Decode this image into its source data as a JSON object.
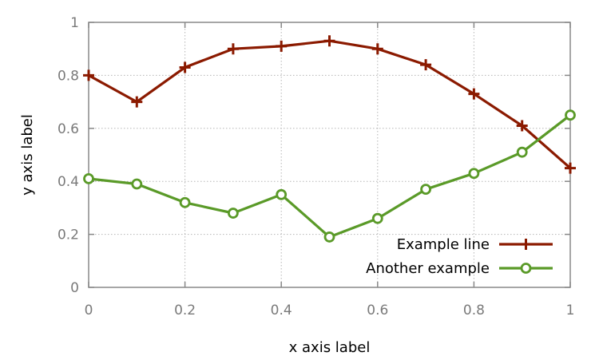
{
  "chart_data": {
    "type": "line",
    "xlabel": "x axis label",
    "ylabel": "y axis label",
    "xlim": [
      0,
      1
    ],
    "ylim": [
      0,
      1
    ],
    "x_ticks": [
      "0",
      "0.2",
      "0.4",
      "0.6",
      "0.8",
      "1"
    ],
    "y_ticks": [
      "0",
      "0.2",
      "0.4",
      "0.6",
      "0.8",
      "1"
    ],
    "grid": true,
    "legend_position": "bottom-right",
    "series": [
      {
        "name": "Example line",
        "color": "#8b1a00",
        "marker": "plus",
        "x": [
          0,
          0.1,
          0.2,
          0.3,
          0.4,
          0.5,
          0.6,
          0.7,
          0.8,
          0.9,
          1.0
        ],
        "y": [
          0.8,
          0.7,
          0.83,
          0.9,
          0.91,
          0.93,
          0.9,
          0.84,
          0.73,
          0.61,
          0.45
        ]
      },
      {
        "name": "Another example",
        "color": "#5a9a28",
        "marker": "circle",
        "x": [
          0,
          0.1,
          0.2,
          0.3,
          0.4,
          0.5,
          0.6,
          0.7,
          0.8,
          0.9,
          1.0
        ],
        "y": [
          0.41,
          0.39,
          0.32,
          0.28,
          0.35,
          0.19,
          0.26,
          0.37,
          0.43,
          0.51,
          0.65
        ]
      }
    ]
  }
}
